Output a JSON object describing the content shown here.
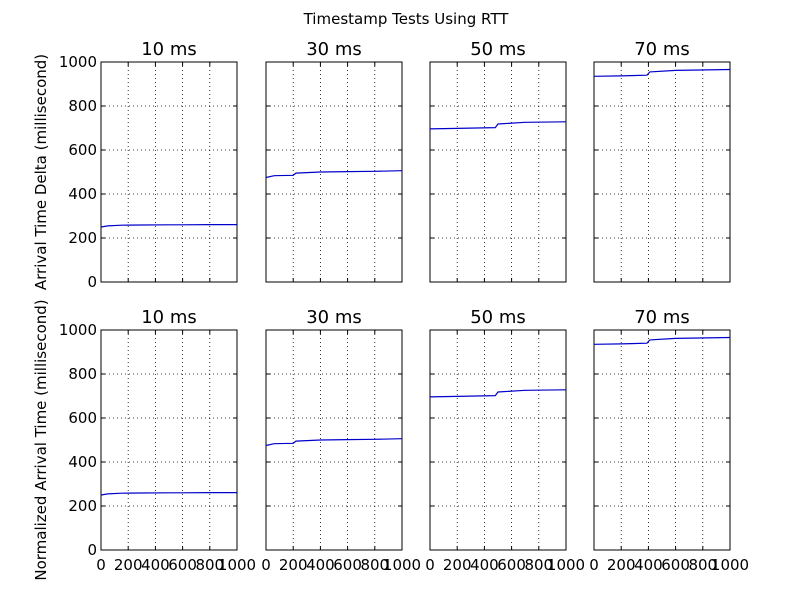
{
  "chart_data": {
    "title": "Timestamp Tests Using RTT",
    "type": "line",
    "colors": {
      "line": "#0000cc"
    },
    "grid": true,
    "panels": [
      {
        "title": "10 ms",
        "row": 0,
        "col": 0,
        "xlim": [
          0,
          1000
        ],
        "ylim": [
          0,
          1000
        ],
        "points": [
          [
            0,
            250
          ],
          [
            50,
            255
          ],
          [
            150,
            258
          ],
          [
            300,
            259
          ],
          [
            500,
            260
          ],
          [
            600,
            260
          ],
          [
            800,
            261
          ],
          [
            1000,
            261
          ]
        ]
      },
      {
        "title": "30 ms",
        "row": 0,
        "col": 1,
        "xlim": [
          0,
          1000
        ],
        "ylim": [
          0,
          1000
        ],
        "points": [
          [
            0,
            475
          ],
          [
            60,
            483
          ],
          [
            200,
            485
          ],
          [
            220,
            495
          ],
          [
            400,
            500
          ],
          [
            600,
            502
          ],
          [
            800,
            503
          ],
          [
            1000,
            506
          ]
        ]
      },
      {
        "title": "50 ms",
        "row": 0,
        "col": 2,
        "xlim": [
          0,
          1000
        ],
        "ylim": [
          0,
          1000
        ],
        "points": [
          [
            0,
            696
          ],
          [
            200,
            698
          ],
          [
            480,
            702
          ],
          [
            500,
            718
          ],
          [
            700,
            726
          ],
          [
            1000,
            728
          ]
        ]
      },
      {
        "title": "70 ms",
        "row": 0,
        "col": 3,
        "xlim": [
          0,
          1000
        ],
        "ylim": [
          0,
          1000
        ],
        "points": [
          [
            0,
            935
          ],
          [
            200,
            937
          ],
          [
            390,
            940
          ],
          [
            410,
            955
          ],
          [
            600,
            962
          ],
          [
            1000,
            966
          ]
        ]
      },
      {
        "title": "10 ms",
        "row": 1,
        "col": 0,
        "xlim": [
          0,
          1000
        ],
        "ylim": [
          0,
          1000
        ],
        "points": [
          [
            0,
            250
          ],
          [
            50,
            255
          ],
          [
            150,
            258
          ],
          [
            300,
            259
          ],
          [
            500,
            260
          ],
          [
            600,
            260
          ],
          [
            800,
            261
          ],
          [
            1000,
            261
          ]
        ]
      },
      {
        "title": "30 ms",
        "row": 1,
        "col": 1,
        "xlim": [
          0,
          1000
        ],
        "ylim": [
          0,
          1000
        ],
        "points": [
          [
            0,
            475
          ],
          [
            60,
            483
          ],
          [
            200,
            485
          ],
          [
            220,
            495
          ],
          [
            400,
            500
          ],
          [
            600,
            502
          ],
          [
            800,
            503
          ],
          [
            1000,
            506
          ]
        ]
      },
      {
        "title": "50 ms",
        "row": 1,
        "col": 2,
        "xlim": [
          0,
          1000
        ],
        "ylim": [
          0,
          1000
        ],
        "points": [
          [
            0,
            696
          ],
          [
            200,
            698
          ],
          [
            480,
            702
          ],
          [
            500,
            718
          ],
          [
            700,
            726
          ],
          [
            1000,
            728
          ]
        ]
      },
      {
        "title": "70 ms",
        "row": 1,
        "col": 3,
        "xlim": [
          0,
          1000
        ],
        "ylim": [
          0,
          1000
        ],
        "points": [
          [
            0,
            935
          ],
          [
            200,
            937
          ],
          [
            390,
            940
          ],
          [
            410,
            955
          ],
          [
            600,
            962
          ],
          [
            1000,
            966
          ]
        ]
      }
    ],
    "ylabels": [
      "Arrival Time Delta (millisecond)",
      "Normalized Arrival Time (millisecond)"
    ],
    "yticks": [
      0,
      200,
      400,
      600,
      800,
      1000
    ],
    "xticks": [
      0,
      200,
      400,
      600,
      800,
      1000
    ]
  }
}
